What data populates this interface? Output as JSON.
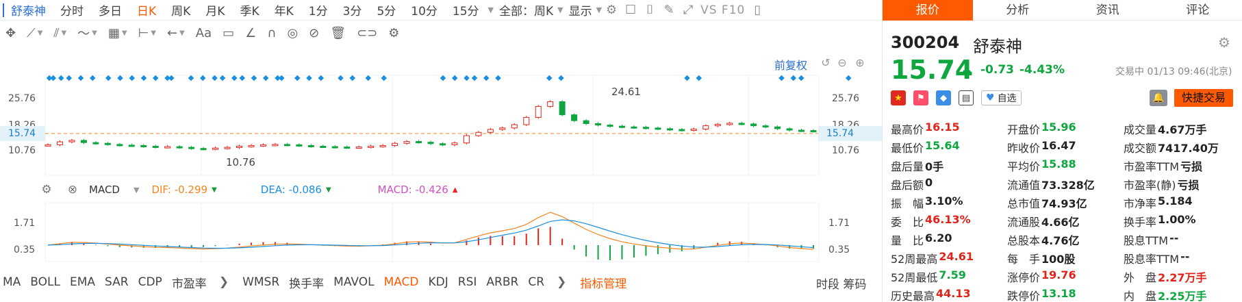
{
  "toolbar": {
    "stock_name": "舒泰神",
    "periods": [
      "分时",
      "多日",
      "日K",
      "周K",
      "月K",
      "季K",
      "年K",
      "1分",
      "3分",
      "5分",
      "10分",
      "15分"
    ],
    "active_period": "日K",
    "range_label": "全部：周K",
    "display_label": "显示",
    "compare_label": "VS F10"
  },
  "tools": {
    "text_tool_label": "Aa"
  },
  "chart": {
    "adjust_label": "前复权",
    "current_price_tag": "15.74",
    "y_ticks": [
      "25.76",
      "18.26",
      "10.76"
    ],
    "high_label": "24.61",
    "low_label": "10.76",
    "macd": {
      "indicator": "MACD",
      "dif": "DIF: -0.299",
      "dea": "DEA: -0.086",
      "macd": "MACD: -0.426",
      "y_ticks": [
        "1.71",
        "0.35"
      ]
    }
  },
  "chart_data": {
    "type": "line",
    "title": "",
    "series": [
      {
        "name": "close",
        "values": [
          12.0,
          12.8,
          13.2,
          12.6,
          12.4,
          12.1,
          11.9,
          11.8,
          11.6,
          11.4,
          11.5,
          11.3,
          11.0,
          10.9,
          11.1,
          11.3,
          11.6,
          11.8,
          12.0,
          12.1,
          12.0,
          11.8,
          11.6,
          11.5,
          11.4,
          11.3,
          11.4,
          11.6,
          11.8,
          12.4,
          12.9,
          12.7,
          12.3,
          12.0,
          12.5,
          14.5,
          15.4,
          16.2,
          16.6,
          17.5,
          19.5,
          22.5,
          23.8,
          20.2,
          18.6,
          17.8,
          17.4,
          17.1,
          16.9,
          16.8,
          16.6,
          16.4,
          16.2,
          16.0,
          16.3,
          17.2,
          17.6,
          17.9,
          17.7,
          17.2,
          16.9,
          16.4,
          16.0,
          15.9,
          15.74
        ]
      }
    ],
    "ylim": [
      10.76,
      25.76
    ],
    "high": 24.61,
    "low": 10.76,
    "current": 15.74
  },
  "indicators": {
    "items": [
      "MA",
      "BOLL",
      "EMA",
      "SAR",
      "CDP",
      "市盈率",
      "WMSR",
      "换手率",
      "MAVOL",
      "MACD",
      "KDJ",
      "RSI",
      "ARBR",
      "CR"
    ],
    "active": "MACD",
    "manage": "指标管理",
    "tail": "时段 筹码"
  },
  "panel": {
    "tabs": [
      "报价",
      "分析",
      "资讯",
      "评论"
    ],
    "code": "300204",
    "name": "舒泰神",
    "price": "15.74",
    "change": "-0.73",
    "change_pct": "-4.43%",
    "status": "交易中 01/13 09:46(北京)",
    "fav_label": "自选",
    "trade_label": "快捷交易",
    "quotes": [
      [
        [
          "最高价",
          "16.15",
          "red"
        ],
        [
          "开盘价",
          "15.96",
          "green"
        ],
        [
          "成交量",
          "4.67万手",
          ""
        ]
      ],
      [
        [
          "最低价",
          "15.64",
          "green"
        ],
        [
          "昨收价",
          "16.47",
          ""
        ],
        [
          "成交额",
          "7417.40万",
          ""
        ]
      ],
      [
        [
          "盘后量",
          "0手",
          ""
        ],
        [
          "平均价",
          "15.88",
          "green"
        ],
        [
          "市盈率TTM",
          "亏损",
          ""
        ]
      ],
      [
        [
          "盘后额",
          "0",
          ""
        ],
        [
          "流通值",
          "73.328亿",
          ""
        ],
        [
          "市盈率(静)",
          "亏损",
          ""
        ]
      ],
      [
        [
          "振　幅",
          "3.10%",
          ""
        ],
        [
          "总市值",
          "74.93亿",
          ""
        ],
        [
          "市净率",
          "5.184",
          ""
        ]
      ],
      [
        [
          "委　比",
          "46.13%",
          "red"
        ],
        [
          "流通股",
          "4.66亿",
          ""
        ],
        [
          "换手率",
          "1.00%",
          ""
        ]
      ],
      [
        [
          "量　比",
          "6.20",
          ""
        ],
        [
          "总股本",
          "4.76亿",
          ""
        ],
        [
          "股息TTM",
          "--",
          ""
        ]
      ],
      [
        [
          "52周最高",
          "24.61",
          "red"
        ],
        [
          "每　手",
          "100股",
          ""
        ],
        [
          "股息率TTM",
          "--",
          ""
        ]
      ],
      [
        [
          "52周最低",
          "7.59",
          "green"
        ],
        [
          "涨停价",
          "19.76",
          "red"
        ],
        [
          "外　盘",
          "2.27万手",
          "red"
        ]
      ],
      [
        [
          "历史最高",
          "44.13",
          "red"
        ],
        [
          "跌停价",
          "13.18",
          "green"
        ],
        [
          "内　盘",
          "2.25万手",
          "green"
        ]
      ]
    ]
  }
}
